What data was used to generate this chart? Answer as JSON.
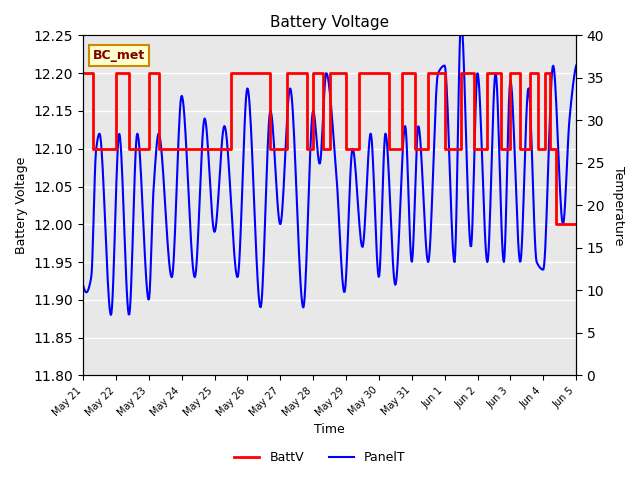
{
  "title": "Battery Voltage",
  "xlabel": "Time",
  "ylabel_left": "Battery Voltage",
  "ylabel_right": "Temperature",
  "ylim_left": [
    11.8,
    12.25
  ],
  "ylim_right": [
    0,
    40
  ],
  "background_color": "#ffffff",
  "plot_bg_color": "#e8e8e8",
  "grid_color": "#ffffff",
  "legend_label_batt": "BattV",
  "legend_label_panel": "PanelT",
  "annotation_text": "BC_met",
  "annotation_bg": "#ffffcc",
  "annotation_border": "#cc8800",
  "batt_color": "#ff0000",
  "panel_color": "#0000ff",
  "xtick_labels": [
    "May 21",
    "May 22",
    "May 23",
    "May 24",
    "May 25",
    "May 26",
    "May 27",
    "May 28",
    "May 29",
    "May 30",
    "May 31",
    "Jun 1",
    "Jun 2",
    "Jun 3",
    "Jun 4",
    "Jun 5"
  ],
  "batt_steps_x": [
    0.0,
    0.3,
    0.3,
    1.0,
    1.0,
    1.4,
    1.4,
    2.0,
    2.0,
    2.3,
    2.3,
    4.5,
    4.5,
    5.7,
    5.7,
    6.2,
    6.2,
    6.8,
    6.8,
    7.0,
    7.0,
    7.3,
    7.3,
    7.5,
    7.5,
    8.0,
    8.0,
    8.4,
    8.4,
    9.3,
    9.3,
    9.7,
    9.7,
    10.1,
    10.1,
    10.5,
    10.5,
    11.0,
    11.0,
    11.5,
    11.5,
    11.9,
    11.9,
    12.3,
    12.3,
    12.7,
    12.7,
    13.0,
    13.0,
    13.3,
    13.3,
    13.6,
    13.6,
    13.85,
    13.85,
    14.05,
    14.05,
    14.2,
    14.2,
    14.4,
    14.4,
    15.0
  ],
  "batt_steps_y": [
    12.2,
    12.2,
    12.1,
    12.1,
    12.2,
    12.2,
    12.1,
    12.1,
    12.2,
    12.2,
    12.1,
    12.1,
    12.2,
    12.2,
    12.1,
    12.1,
    12.2,
    12.2,
    12.1,
    12.1,
    12.2,
    12.2,
    12.1,
    12.1,
    12.2,
    12.2,
    12.1,
    12.1,
    12.2,
    12.2,
    12.1,
    12.1,
    12.2,
    12.2,
    12.1,
    12.1,
    12.2,
    12.2,
    12.1,
    12.1,
    12.2,
    12.2,
    12.1,
    12.1,
    12.2,
    12.2,
    12.1,
    12.1,
    12.2,
    12.2,
    12.1,
    12.1,
    12.2,
    12.2,
    12.1,
    12.1,
    12.2,
    12.2,
    12.1,
    12.1,
    12.0,
    12.0
  ],
  "yticks_left": [
    11.8,
    11.85,
    11.9,
    11.95,
    12.0,
    12.05,
    12.1,
    12.15,
    12.2,
    12.25
  ],
  "yticks_right": [
    0,
    5,
    10,
    15,
    20,
    25,
    30,
    35,
    40
  ]
}
